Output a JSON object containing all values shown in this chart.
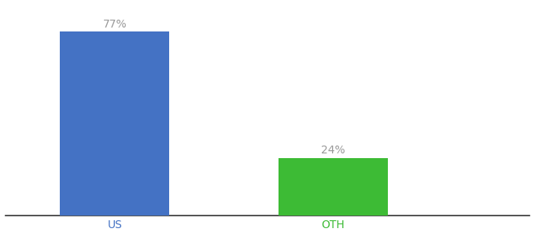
{
  "categories": [
    "US",
    "OTH"
  ],
  "values": [
    77,
    24
  ],
  "bar_colors": [
    "#4472c4",
    "#3dbb35"
  ],
  "label_texts": [
    "77%",
    "24%"
  ],
  "label_color": "#999999",
  "tick_color_us": "#4472c4",
  "tick_color_oth": "#3dbb35",
  "background_color": "#ffffff",
  "ylim": [
    0,
    88
  ],
  "bar_width": 0.5,
  "label_fontsize": 10,
  "tick_fontsize": 10
}
